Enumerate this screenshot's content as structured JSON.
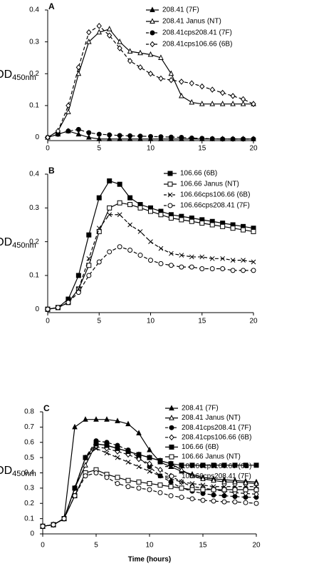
{
  "chart_data": [
    {
      "type": "line",
      "panel_label": "A",
      "ylabel": "OD",
      "ylabel_subscript": "450nm",
      "x": [
        0,
        1,
        2,
        3,
        4,
        5,
        6,
        7,
        8,
        9,
        10,
        11,
        12,
        13,
        14,
        15,
        16,
        17,
        18,
        19,
        20
      ],
      "xlim": [
        0,
        20
      ],
      "xticks": [
        0,
        5,
        10,
        15,
        20
      ],
      "ylim": [
        -0.01,
        0.4
      ],
      "yticks": [
        0,
        0.1,
        0.2,
        0.3,
        0.4
      ],
      "series": [
        {
          "name": "208.41 (7F)",
          "color": "#000000",
          "marker": "triangle-filled",
          "dashed": false,
          "values": [
            0,
            0.01,
            0.02,
            0.01,
            0,
            -0.005,
            -0.005,
            -0.005,
            -0.005,
            -0.005,
            -0.005,
            -0.005,
            -0.005,
            -0.005,
            -0.005,
            -0.005,
            -0.005,
            -0.005,
            -0.005,
            -0.005,
            -0.005
          ]
        },
        {
          "name": "208.41 Janus (NT)",
          "color": "#000000",
          "marker": "triangle-open",
          "dashed": false,
          "values": [
            0,
            0.02,
            0.08,
            0.2,
            0.3,
            0.33,
            0.34,
            0.3,
            0.27,
            0.265,
            0.26,
            0.25,
            0.2,
            0.13,
            0.11,
            0.105,
            0.105,
            0.105,
            0.105,
            0.105,
            0.105
          ]
        },
        {
          "name": "208.41cps208.41 (7F)",
          "color": "#000000",
          "marker": "circle-filled",
          "dashed": true,
          "values": [
            0,
            0.01,
            0.02,
            0.025,
            0.015,
            0.01,
            0.008,
            0.006,
            0.005,
            0.004,
            0.003,
            0.002,
            0.001,
            0,
            -0.002,
            -0.003,
            -0.004,
            -0.005,
            -0.005,
            -0.005,
            -0.005
          ]
        },
        {
          "name": "208.41cps106.66 (6B)",
          "color": "#000000",
          "marker": "diamond-open",
          "dashed": true,
          "values": [
            0,
            0.02,
            0.1,
            0.22,
            0.33,
            0.35,
            0.32,
            0.28,
            0.24,
            0.22,
            0.2,
            0.185,
            0.18,
            0.175,
            0.17,
            0.16,
            0.15,
            0.14,
            0.13,
            0.12,
            0.105
          ]
        }
      ]
    },
    {
      "type": "line",
      "panel_label": "B",
      "ylabel": "OD",
      "ylabel_subscript": "450nm",
      "x": [
        0,
        1,
        2,
        3,
        4,
        5,
        6,
        7,
        8,
        9,
        10,
        11,
        12,
        13,
        14,
        15,
        16,
        17,
        18,
        19,
        20
      ],
      "xlim": [
        0,
        20
      ],
      "xticks": [
        0,
        5,
        10,
        15,
        20
      ],
      "ylim": [
        -0.01,
        0.4
      ],
      "yticks": [
        0,
        0.1,
        0.2,
        0.3,
        0.4
      ],
      "series": [
        {
          "name": "106.66 (6B)",
          "color": "#000000",
          "marker": "square-filled",
          "dashed": false,
          "values": [
            0,
            0.005,
            0.03,
            0.1,
            0.22,
            0.33,
            0.38,
            0.37,
            0.33,
            0.31,
            0.3,
            0.29,
            0.28,
            0.275,
            0.27,
            0.265,
            0.26,
            0.255,
            0.25,
            0.245,
            0.24
          ]
        },
        {
          "name": "106.66 Janus (NT)",
          "color": "#000000",
          "marker": "square-open",
          "dashed": false,
          "values": [
            0,
            0.005,
            0.02,
            0.06,
            0.13,
            0.23,
            0.3,
            0.315,
            0.31,
            0.3,
            0.29,
            0.28,
            0.27,
            0.265,
            0.26,
            0.255,
            0.25,
            0.245,
            0.24,
            0.235,
            0.23
          ]
        },
        {
          "name": "106.66cps106.66 (6B)",
          "color": "#000000",
          "marker": "cross",
          "dashed": true,
          "values": [
            0,
            0.005,
            0.02,
            0.06,
            0.15,
            0.24,
            0.28,
            0.28,
            0.25,
            0.23,
            0.2,
            0.18,
            0.165,
            0.16,
            0.155,
            0.155,
            0.15,
            0.15,
            0.145,
            0.145,
            0.14
          ]
        },
        {
          "name": "106.66cps208.41 (7F)",
          "color": "#000000",
          "marker": "circle-open",
          "dashed": true,
          "values": [
            0,
            0.005,
            0.02,
            0.05,
            0.1,
            0.14,
            0.17,
            0.185,
            0.175,
            0.16,
            0.145,
            0.135,
            0.13,
            0.125,
            0.125,
            0.12,
            0.12,
            0.12,
            0.115,
            0.115,
            0.115
          ]
        }
      ]
    },
    {
      "type": "line",
      "panel_label": "C",
      "ylabel": "OD",
      "ylabel_subscript": "450nm",
      "xlabel": "Time (hours)",
      "x": [
        0,
        1,
        2,
        3,
        4,
        5,
        6,
        7,
        8,
        9,
        10,
        11,
        12,
        13,
        14,
        15,
        16,
        17,
        18,
        19,
        20
      ],
      "xlim": [
        0,
        20
      ],
      "xticks": [
        0,
        5,
        10,
        15,
        20
      ],
      "ylim": [
        0,
        0.8
      ],
      "yticks": [
        0,
        0.1,
        0.2,
        0.3,
        0.4,
        0.5,
        0.6,
        0.7,
        0.8
      ],
      "series": [
        {
          "name": "208.41 (7F)",
          "color": "#000000",
          "marker": "triangle-filled",
          "dashed": false,
          "values": [
            0.05,
            0.06,
            0.1,
            0.7,
            0.75,
            0.75,
            0.75,
            0.74,
            0.72,
            0.66,
            0.55,
            0.47,
            0.44,
            0.41,
            0.39,
            0.37,
            0.36,
            0.355,
            0.35,
            0.345,
            0.34
          ]
        },
        {
          "name": "208.41 Janus (NT)",
          "color": "#000000",
          "marker": "triangle-open",
          "dashed": false,
          "values": [
            0.05,
            0.06,
            0.1,
            0.3,
            0.45,
            0.59,
            0.58,
            0.56,
            0.54,
            0.52,
            0.5,
            0.48,
            0.46,
            0.42,
            0.38,
            0.36,
            0.35,
            0.34,
            0.34,
            0.335,
            0.33
          ]
        },
        {
          "name": "208.41cps208.41 (7F)",
          "color": "#000000",
          "marker": "circle-filled",
          "dashed": true,
          "values": [
            0.05,
            0.06,
            0.1,
            0.3,
            0.5,
            0.61,
            0.6,
            0.58,
            0.55,
            0.5,
            0.44,
            0.38,
            0.34,
            0.3,
            0.28,
            0.265,
            0.255,
            0.25,
            0.245,
            0.24,
            0.24
          ]
        },
        {
          "name": "208.41cps106.66 (6B)",
          "color": "#000000",
          "marker": "diamond-open",
          "dashed": true,
          "values": [
            0.05,
            0.06,
            0.1,
            0.3,
            0.5,
            0.57,
            0.56,
            0.54,
            0.52,
            0.49,
            0.46,
            0.42,
            0.38,
            0.34,
            0.31,
            0.3,
            0.29,
            0.28,
            0.27,
            0.265,
            0.26
          ]
        },
        {
          "name": "106.66 (6B)",
          "color": "#000000",
          "marker": "square-filled",
          "dashed": false,
          "values": [
            0.05,
            0.06,
            0.1,
            0.3,
            0.5,
            0.59,
            0.58,
            0.56,
            0.54,
            0.52,
            0.5,
            0.48,
            0.46,
            0.45,
            0.45,
            0.45,
            0.45,
            0.45,
            0.45,
            0.45,
            0.45
          ]
        },
        {
          "name": "106.66 Janus (NT)",
          "color": "#000000",
          "marker": "square-open",
          "dashed": false,
          "values": [
            0.05,
            0.06,
            0.1,
            0.25,
            0.4,
            0.42,
            0.39,
            0.37,
            0.35,
            0.34,
            0.33,
            0.32,
            0.31,
            0.3,
            0.29,
            0.29,
            0.29,
            0.29,
            0.29,
            0.29,
            0.29
          ]
        },
        {
          "name": "106.66cps106.66 (6B)",
          "color": "#000000",
          "marker": "cross",
          "dashed": true,
          "values": [
            0.05,
            0.06,
            0.1,
            0.3,
            0.5,
            0.56,
            0.53,
            0.5,
            0.47,
            0.44,
            0.41,
            0.38,
            0.36,
            0.34,
            0.33,
            0.32,
            0.31,
            0.31,
            0.31,
            0.31,
            0.31
          ]
        },
        {
          "name": "106.66cps208.41 (7F)",
          "color": "#000000",
          "marker": "circle-open",
          "dashed": true,
          "values": [
            0.05,
            0.06,
            0.1,
            0.25,
            0.38,
            0.4,
            0.37,
            0.33,
            0.31,
            0.3,
            0.29,
            0.27,
            0.25,
            0.24,
            0.23,
            0.22,
            0.215,
            0.21,
            0.21,
            0.205,
            0.2
          ]
        }
      ]
    }
  ]
}
